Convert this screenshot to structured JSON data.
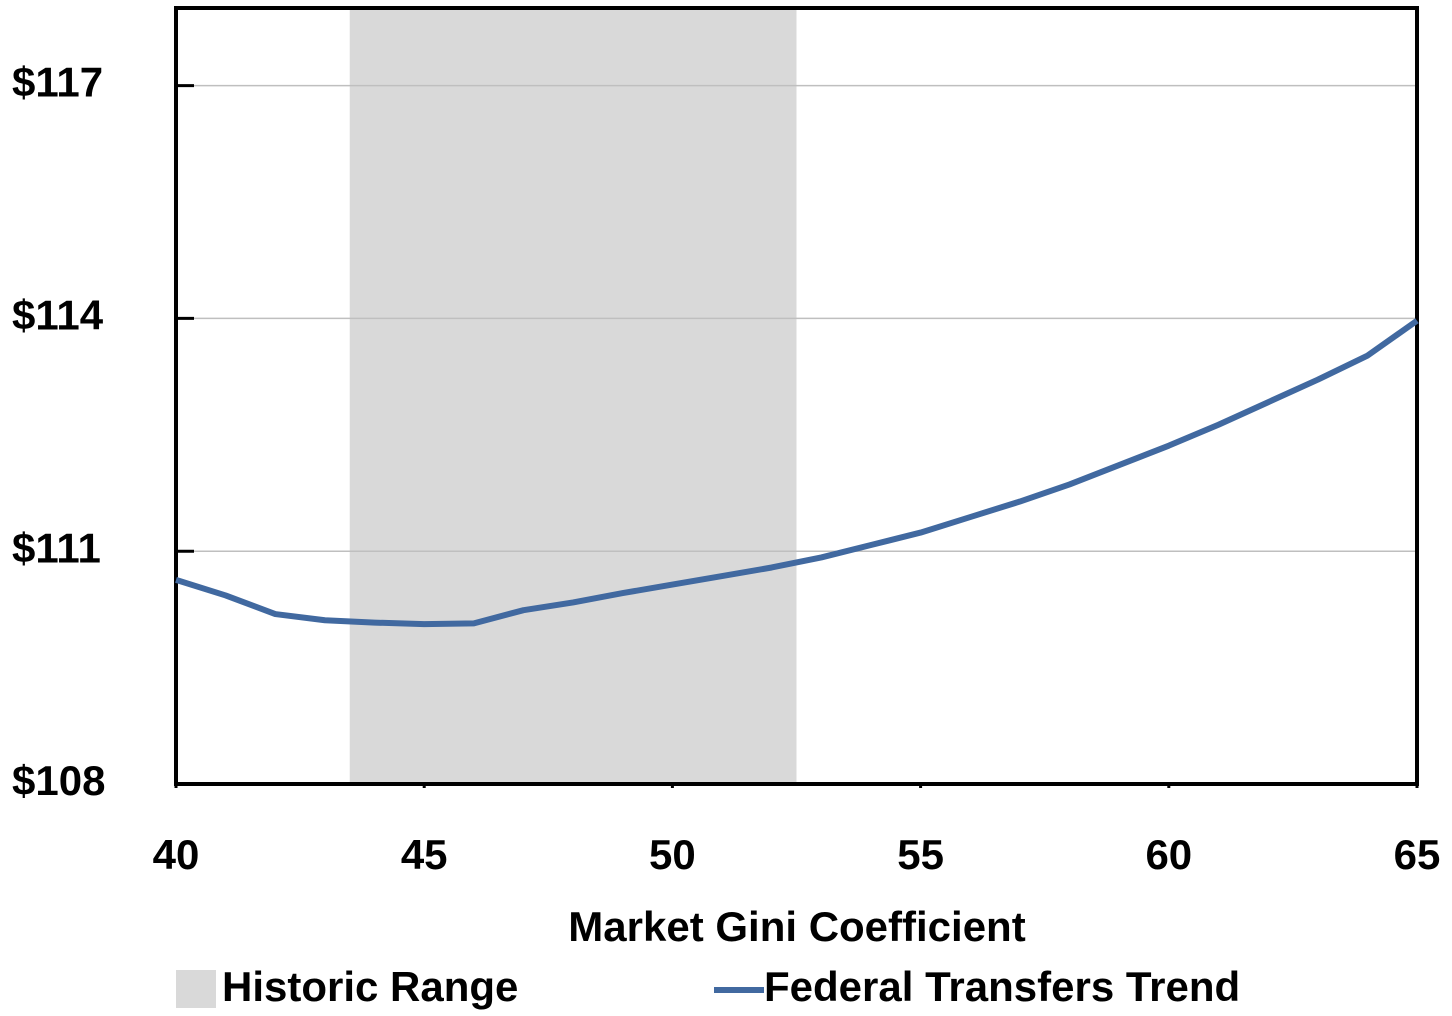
{
  "chart_data": {
    "type": "line",
    "x_label": "Market Gini Coefficient",
    "x": [
      40,
      41,
      42,
      43,
      44,
      45,
      46,
      47,
      48,
      49,
      50,
      51,
      52,
      53,
      54,
      55,
      56,
      57,
      58,
      59,
      60,
      61,
      62,
      63,
      64,
      65
    ],
    "series": [
      {
        "name": "Federal Transfers Trend",
        "color": "#4169a0",
        "values": [
          110.63,
          110.43,
          110.19,
          110.11,
          110.08,
          110.06,
          110.07,
          110.24,
          110.34,
          110.46,
          110.57,
          110.68,
          110.79,
          110.92,
          111.08,
          111.24,
          111.44,
          111.64,
          111.86,
          112.11,
          112.36,
          112.63,
          112.92,
          113.21,
          113.52,
          113.97
        ]
      }
    ],
    "shaded_range": {
      "name": "Historic Range",
      "color": "#d9d9d9",
      "x": [
        43.5,
        52.5
      ]
    },
    "xlim": [
      40,
      65
    ],
    "xticks": [
      40,
      45,
      50,
      55,
      60,
      65
    ],
    "ylim": [
      108,
      118
    ],
    "yticks": [
      {
        "value": 108,
        "label": "$108"
      },
      {
        "value": 111,
        "label": "$111"
      },
      {
        "value": 114,
        "label": "$114"
      },
      {
        "value": 117,
        "label": "$117"
      }
    ],
    "grid": true,
    "legend": "bottom"
  }
}
